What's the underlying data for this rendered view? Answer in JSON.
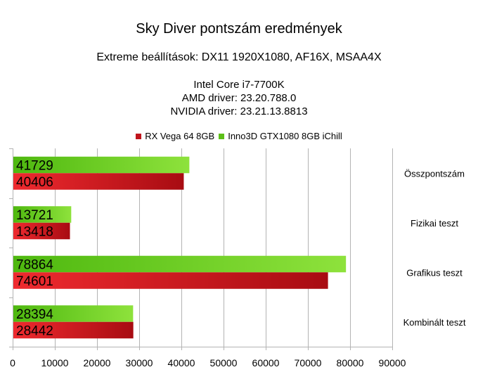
{
  "chart_data": {
    "type": "bar",
    "orientation": "horizontal",
    "title": "Sky Diver pontszám eredmények",
    "subtitle": "Extreme beállítások: DX11 1920X1080, AF16X, MSAA4X",
    "notes": [
      "Intel Core i7-7700K",
      "AMD driver: 23.20.788.0",
      "NVIDIA driver: 23.21.13.8813"
    ],
    "categories": [
      "Összpontszám",
      "Fizikai teszt",
      "Grafikus teszt",
      "Kombinált teszt"
    ],
    "series": [
      {
        "name": "RX Vega 64 8GB",
        "color": "#c0141c",
        "values": [
          40406,
          13418,
          74601,
          28442
        ]
      },
      {
        "name": "Inno3D GTX1080 8GB iChill",
        "color": "#5cbf18",
        "values": [
          41729,
          13721,
          78864,
          28394
        ]
      }
    ],
    "xlim": [
      0,
      90000
    ],
    "xticks": [
      0,
      10000,
      20000,
      30000,
      40000,
      50000,
      60000,
      70000,
      80000,
      90000
    ],
    "grid": true,
    "legend_position": "top",
    "category_labels_position": "right",
    "data_labels": "inside-start"
  }
}
